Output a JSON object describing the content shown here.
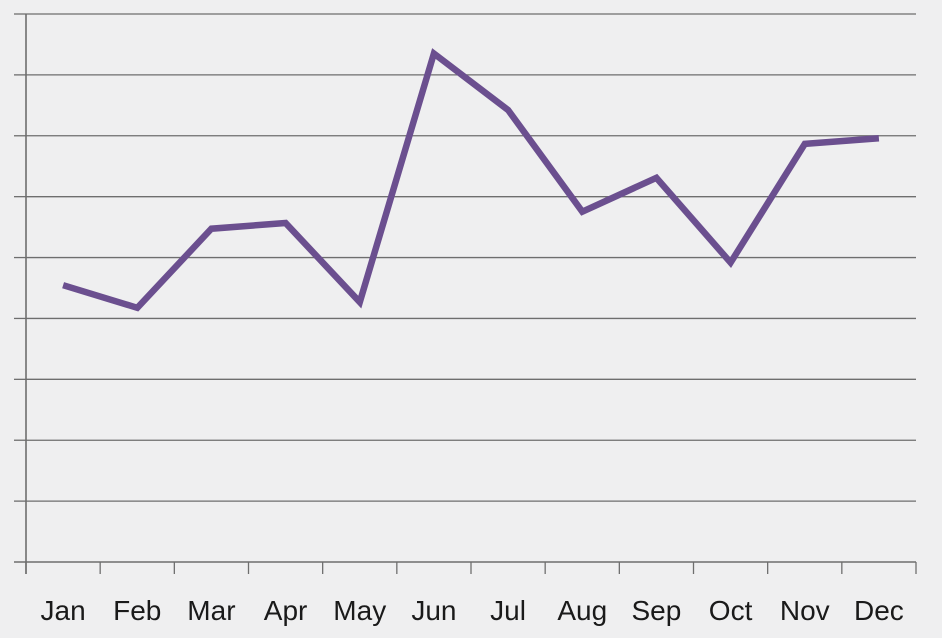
{
  "chart_data": {
    "type": "line",
    "categories": [
      "Jan",
      "Feb",
      "Mar",
      "Apr",
      "May",
      "Jun",
      "Jul",
      "Aug",
      "Sep",
      "Oct",
      "Nov",
      "Dec"
    ],
    "series": [
      {
        "values": [
          4.1,
          3.7,
          5.1,
          5.2,
          3.8,
          8.2,
          7.2,
          5.4,
          6.0,
          4.5,
          6.6,
          6.7
        ],
        "color": "#6b4f8f"
      }
    ],
    "ylim": [
      -0.8,
      8.9
    ],
    "ytick_count": 10,
    "grid": true,
    "title": "",
    "xlabel": "",
    "ylabel": ""
  }
}
